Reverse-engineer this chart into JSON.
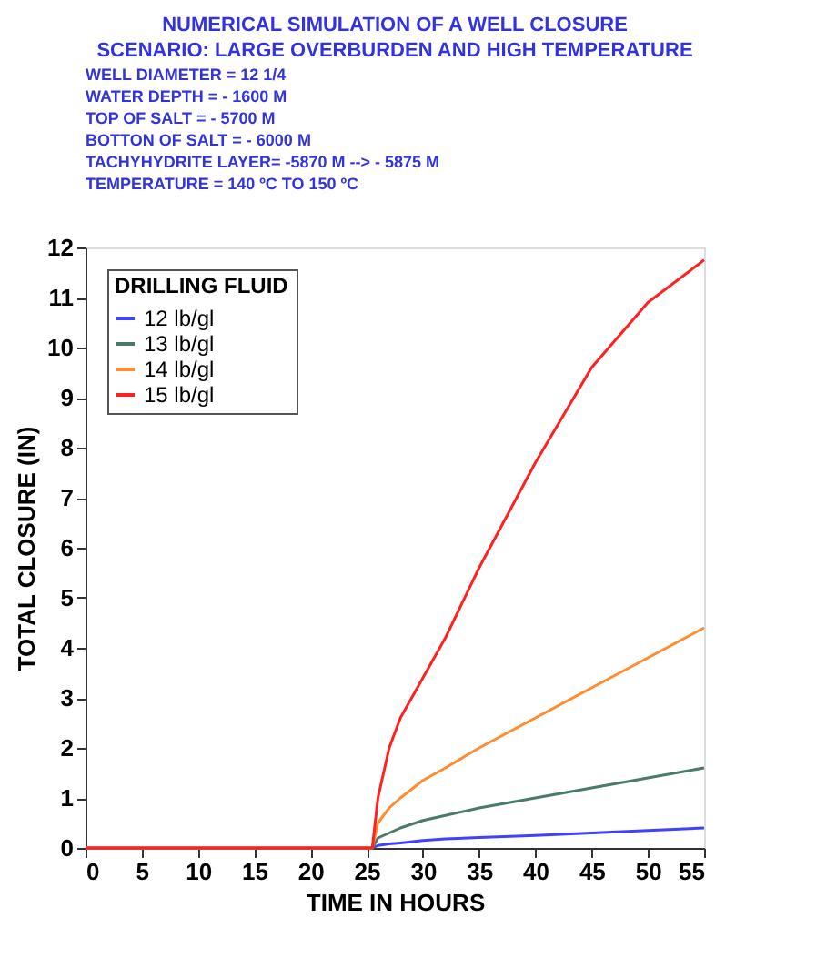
{
  "chart_data": {
    "type": "line",
    "title": "NUMERICAL SIMULATION OF A WELL CLOSURE",
    "subtitle": "SCENARIO:  LARGE OVERBURDEN AND HIGH TEMPERATURE",
    "annotations": [
      "WELL DIAMETER = 12 1/4",
      "WATER DEPTH = - 1600 M",
      "TOP OF SALT = - 5700 M",
      "BOTTON OF SALT = - 6000 M",
      "TACHYHYDRITE LAYER= -5870 M --> - 5875 M",
      "TEMPERATURE = 140 ºC TO 150 ºC"
    ],
    "xlabel": "TIME IN HOURS",
    "ylabel": "TOTAL CLOSURE (IN)",
    "legend_title": "DRILLING FLUID",
    "legend": "top left",
    "grid": false,
    "line_style": "solid",
    "xlim": [
      0,
      55
    ],
    "ylim": [
      0,
      12
    ],
    "xticks": [
      0,
      5,
      10,
      15,
      20,
      25,
      30,
      35,
      40,
      45,
      50,
      55
    ],
    "yticks": [
      0,
      1,
      2,
      3,
      4,
      5,
      6,
      7,
      8,
      9,
      10,
      11,
      12
    ],
    "x": [
      0,
      25.5,
      26,
      27,
      28,
      30,
      32,
      35,
      40,
      45,
      50,
      55
    ],
    "series": [
      {
        "name": "12 lb/gl",
        "color": "#4040ff",
        "values": [
          0,
          0,
          0.05,
          0.08,
          0.1,
          0.15,
          0.18,
          0.21,
          0.25,
          0.3,
          0.35,
          0.4
        ]
      },
      {
        "name": "13 lb/gl",
        "color": "#4a7a6a",
        "values": [
          0,
          0,
          0.2,
          0.3,
          0.4,
          0.55,
          0.65,
          0.8,
          1.0,
          1.2,
          1.4,
          1.6
        ]
      },
      {
        "name": "14 lb/gl",
        "color": "#ff8c30",
        "values": [
          0,
          0,
          0.5,
          0.8,
          1.0,
          1.35,
          1.6,
          2.0,
          2.6,
          3.2,
          3.8,
          4.4
        ]
      },
      {
        "name": "15 lb/gl",
        "color": "#ff2020",
        "values": [
          0,
          0,
          1.0,
          2.0,
          2.6,
          3.4,
          4.2,
          5.6,
          7.7,
          9.6,
          10.9,
          11.75
        ]
      }
    ]
  }
}
